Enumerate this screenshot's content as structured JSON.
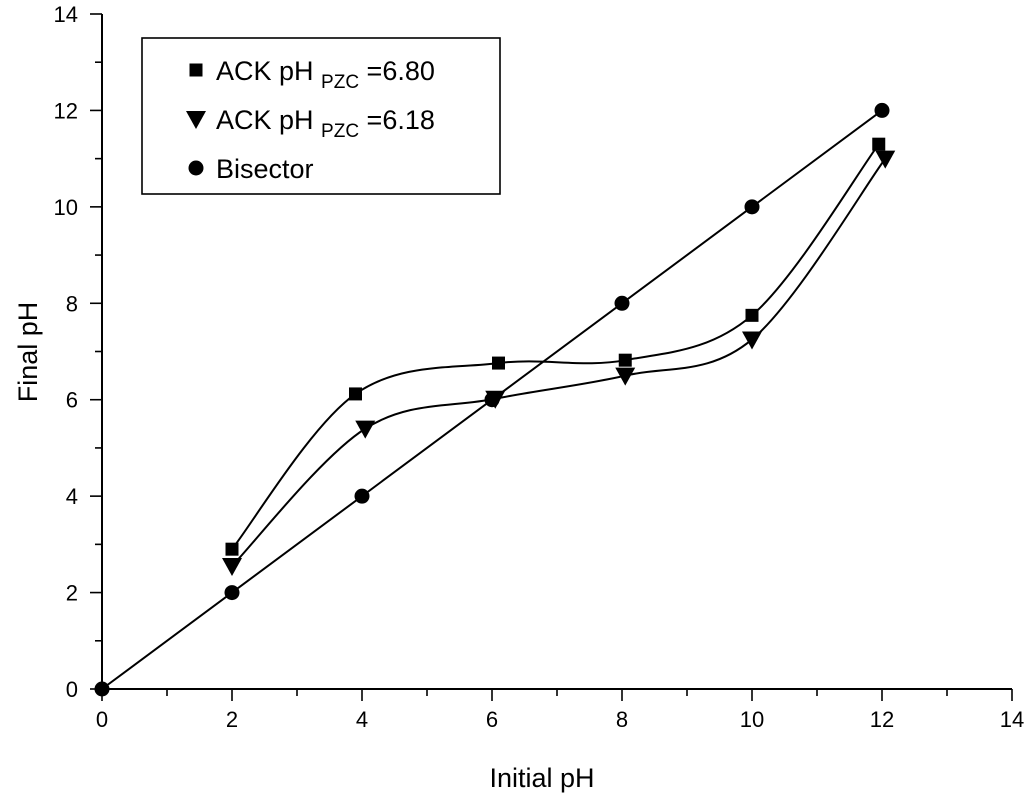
{
  "chart_data": {
    "type": "scatter",
    "xlabel": "Initial pH",
    "ylabel": "Final pH",
    "xlim": [
      0,
      14
    ],
    "ylim": [
      0,
      14
    ],
    "xticks": [
      0,
      2,
      4,
      6,
      8,
      10,
      12,
      14
    ],
    "yticks": [
      0,
      2,
      4,
      6,
      8,
      10,
      12,
      14
    ],
    "grid": false,
    "legend_position": "top-left",
    "series": [
      {
        "name_main": "ACK pH ",
        "name_sub": "PZC",
        "name_tail": " =6.80",
        "marker": "square",
        "curve": "smooth",
        "x": [
          2,
          3.9,
          6.1,
          8.05,
          10,
          11.95
        ],
        "y": [
          2.9,
          6.12,
          6.76,
          6.82,
          7.75,
          11.3
        ]
      },
      {
        "name_main": "ACK pH ",
        "name_sub": "PZC",
        "name_tail": " =6.18",
        "marker": "triangle-down",
        "curve": "smooth",
        "x": [
          2,
          4.05,
          6.05,
          8.05,
          10,
          12.05
        ],
        "y": [
          2.55,
          5.4,
          6.02,
          6.5,
          7.25,
          11.0
        ]
      },
      {
        "name_main": "Bisector",
        "name_sub": "",
        "name_tail": "",
        "marker": "circle",
        "curve": "straight",
        "x": [
          0,
          2,
          4,
          6,
          8,
          10,
          12
        ],
        "y": [
          0,
          2,
          4,
          6,
          8,
          10,
          12
        ]
      }
    ]
  }
}
